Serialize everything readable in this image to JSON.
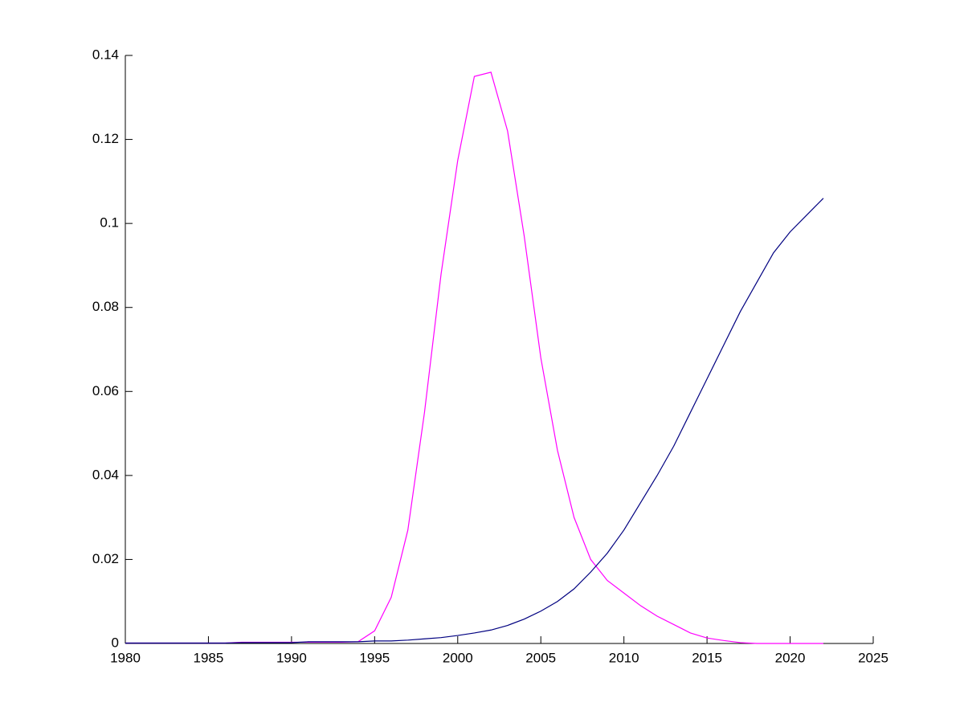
{
  "chart_data": {
    "type": "line",
    "x": [
      1980,
      1981,
      1982,
      1983,
      1984,
      1985,
      1986,
      1987,
      1988,
      1989,
      1990,
      1991,
      1992,
      1993,
      1994,
      1995,
      1996,
      1997,
      1998,
      1999,
      2000,
      2001,
      2002,
      2003,
      2004,
      2005,
      2006,
      2007,
      2008,
      2009,
      2010,
      2011,
      2012,
      2013,
      2014,
      2015,
      2016,
      2017,
      2018,
      2019,
      2020,
      2021,
      2022
    ],
    "series": [
      {
        "color": "#ff00ff",
        "values": [
          0.0001,
          0.0001,
          0.0001,
          0.0001,
          0.0001,
          0.0001,
          0.0001,
          0.0003,
          0.0003,
          0.0003,
          0.0003,
          0.0003,
          0.0003,
          0.0003,
          0.0004,
          0.003,
          0.011,
          0.027,
          0.055,
          0.088,
          0.115,
          0.135,
          0.136,
          0.122,
          0.097,
          0.068,
          0.046,
          0.03,
          0.02,
          0.015,
          0.012,
          0.009,
          0.0065,
          0.0045,
          0.0025,
          0.0013,
          0.0007,
          0.0002,
          0,
          0,
          0,
          0,
          0
        ]
      },
      {
        "color": "#000080",
        "values": [
          0.0001,
          0.0001,
          0.0001,
          0.0001,
          0.0001,
          0.0001,
          0.0001,
          0.0002,
          0.0002,
          0.0002,
          0.0002,
          0.0004,
          0.0004,
          0.0004,
          0.0004,
          0.0006,
          0.0006,
          0.0008,
          0.0011,
          0.0014,
          0.0019,
          0.0025,
          0.0032,
          0.0043,
          0.0058,
          0.0077,
          0.01,
          0.013,
          0.017,
          0.0215,
          0.027,
          0.0335,
          0.04,
          0.047,
          0.055,
          0.063,
          0.071,
          0.079,
          0.086,
          0.093,
          0.098,
          0.102,
          0.106
        ]
      }
    ],
    "xlim": [
      1980,
      2025
    ],
    "xticks": [
      1980,
      1985,
      1990,
      1995,
      2000,
      2005,
      2010,
      2015,
      2020,
      2025
    ],
    "ylim": [
      0,
      0.14
    ],
    "yticks": [
      0,
      0.02,
      0.04,
      0.06,
      0.08,
      0.1,
      0.12,
      0.14
    ],
    "grid": false
  }
}
